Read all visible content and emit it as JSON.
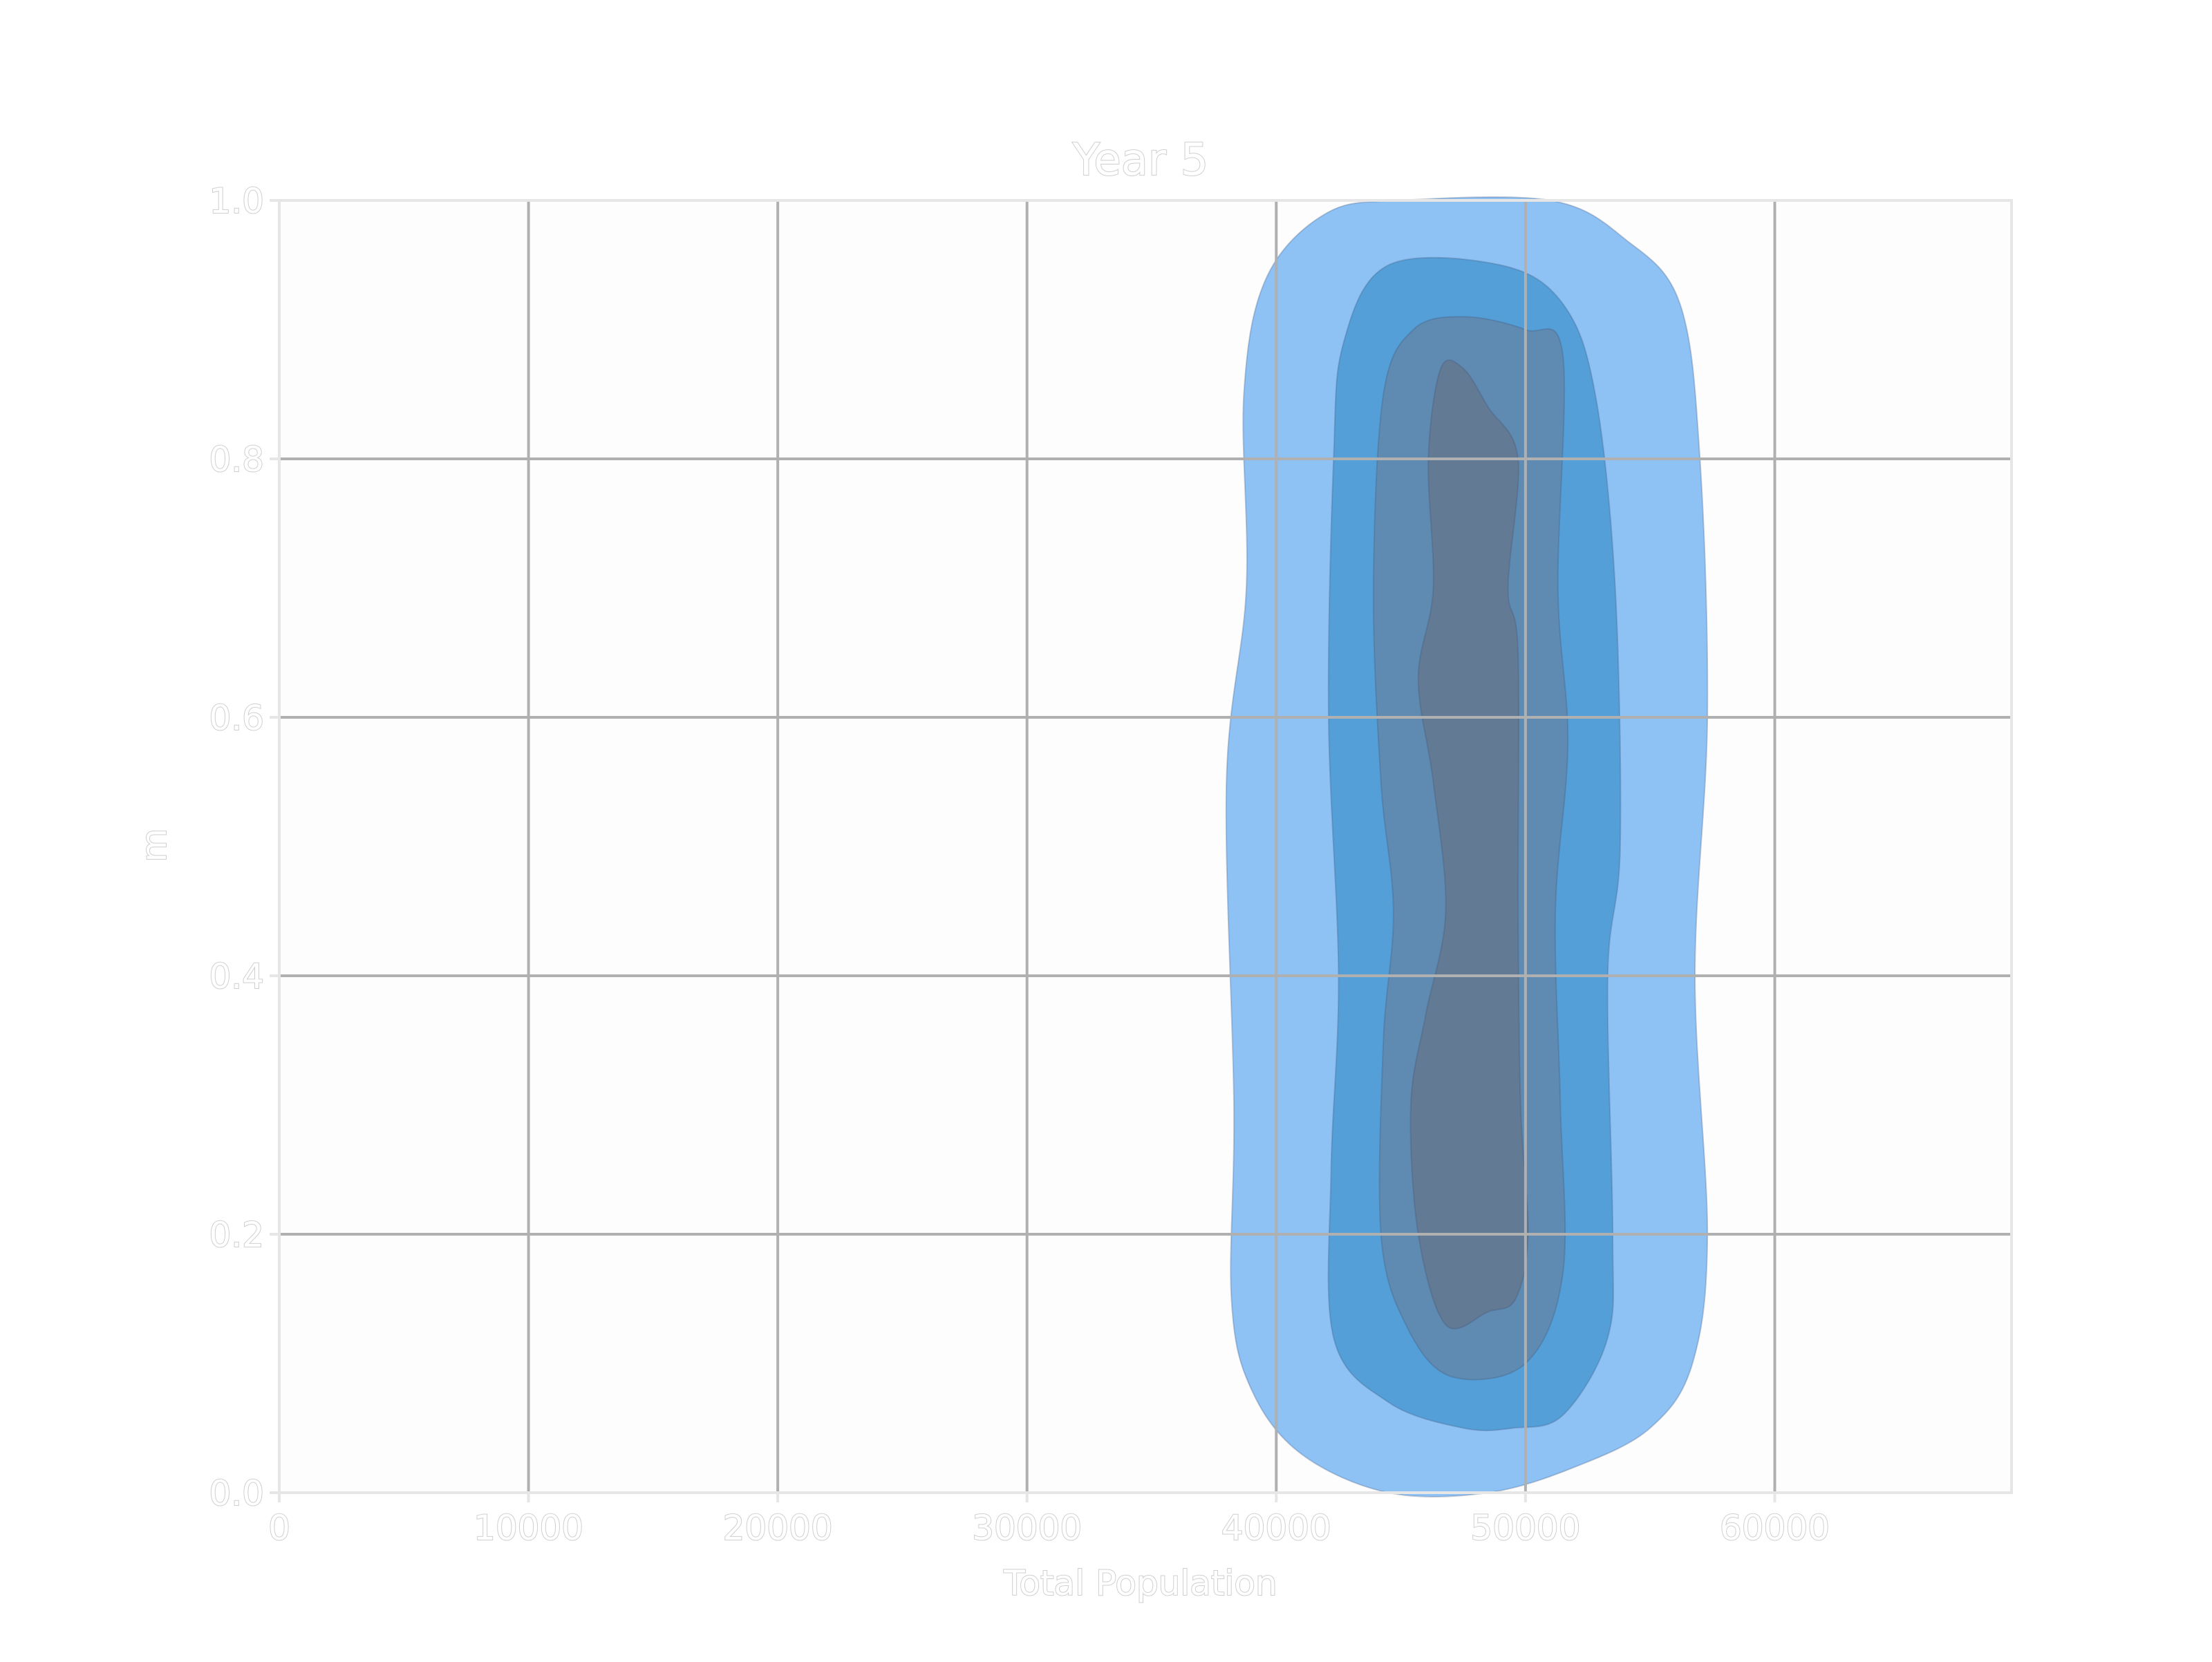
{
  "chart_data": {
    "type": "density-contour",
    "title": "Year 5",
    "xlabel": "Total Population",
    "ylabel": "m",
    "xlim": [
      0,
      69500
    ],
    "ylim": [
      0,
      1.0
    ],
    "xticks": [
      0,
      10000,
      20000,
      30000,
      40000,
      50000,
      60000
    ],
    "xtick_labels": [
      "0",
      "10000",
      "20000",
      "30000",
      "40000",
      "50000",
      "60000"
    ],
    "yticks": [
      0.0,
      0.2,
      0.4,
      0.6,
      0.8,
      1.0
    ],
    "ytick_labels": [
      "0.0",
      "0.2",
      "0.4",
      "0.6",
      "0.8",
      "1.0"
    ],
    "grid": true,
    "contour_levels": [
      {
        "level": 1,
        "color": "#8ec1f4",
        "outline": [
          [
            44500,
            0.0
          ],
          [
            41000,
            0.03
          ],
          [
            39000,
            0.08
          ],
          [
            38200,
            0.15
          ],
          [
            38300,
            0.3
          ],
          [
            38000,
            0.55
          ],
          [
            38800,
            0.7
          ],
          [
            38700,
            0.85
          ],
          [
            39600,
            0.94
          ],
          [
            42000,
            0.99
          ],
          [
            45000,
            1.0
          ],
          [
            51000,
            1.0
          ],
          [
            54000,
            0.97
          ],
          [
            56200,
            0.92
          ],
          [
            57000,
            0.8
          ],
          [
            57300,
            0.6
          ],
          [
            56800,
            0.4
          ],
          [
            57300,
            0.2
          ],
          [
            56700,
            0.1
          ],
          [
            55000,
            0.05
          ],
          [
            52000,
            0.02
          ],
          [
            48500,
            0.0
          ]
        ]
      },
      {
        "level": 2,
        "color": "#559fd8",
        "outline": [
          [
            47500,
            0.05
          ],
          [
            44500,
            0.07
          ],
          [
            42300,
            0.12
          ],
          [
            42200,
            0.25
          ],
          [
            42500,
            0.4
          ],
          [
            42100,
            0.6
          ],
          [
            42300,
            0.8
          ],
          [
            42700,
            0.89
          ],
          [
            44500,
            0.95
          ],
          [
            49000,
            0.95
          ],
          [
            51500,
            0.92
          ],
          [
            52800,
            0.85
          ],
          [
            53600,
            0.7
          ],
          [
            53800,
            0.5
          ],
          [
            53300,
            0.4
          ],
          [
            53500,
            0.2
          ],
          [
            53300,
            0.12
          ],
          [
            51500,
            0.06
          ],
          [
            49500,
            0.05
          ]
        ]
      },
      {
        "level": 3,
        "color": "#5f8ab1",
        "outline": [
          [
            47000,
            0.09
          ],
          [
            45200,
            0.13
          ],
          [
            44200,
            0.2
          ],
          [
            44300,
            0.35
          ],
          [
            44700,
            0.45
          ],
          [
            44200,
            0.55
          ],
          [
            43900,
            0.7
          ],
          [
            44300,
            0.85
          ],
          [
            45500,
            0.9
          ],
          [
            47500,
            0.91
          ],
          [
            50000,
            0.9
          ],
          [
            51500,
            0.88
          ],
          [
            51300,
            0.7
          ],
          [
            51700,
            0.58
          ],
          [
            51200,
            0.45
          ],
          [
            51400,
            0.3
          ],
          [
            51500,
            0.17
          ],
          [
            50000,
            0.1
          ]
        ]
      },
      {
        "level": 4,
        "color": "#627a94",
        "outline": [
          [
            46800,
            0.13
          ],
          [
            45700,
            0.2
          ],
          [
            45400,
            0.3
          ],
          [
            46000,
            0.37
          ],
          [
            46800,
            0.45
          ],
          [
            46300,
            0.55
          ],
          [
            45700,
            0.63
          ],
          [
            46300,
            0.7
          ],
          [
            46100,
            0.8
          ],
          [
            46600,
            0.87
          ],
          [
            47500,
            0.87
          ],
          [
            48500,
            0.84
          ],
          [
            49700,
            0.8
          ],
          [
            49300,
            0.7
          ],
          [
            49700,
            0.65
          ],
          [
            49700,
            0.45
          ],
          [
            49800,
            0.3
          ],
          [
            50100,
            0.2
          ],
          [
            49600,
            0.15
          ],
          [
            48500,
            0.14
          ]
        ]
      }
    ]
  }
}
